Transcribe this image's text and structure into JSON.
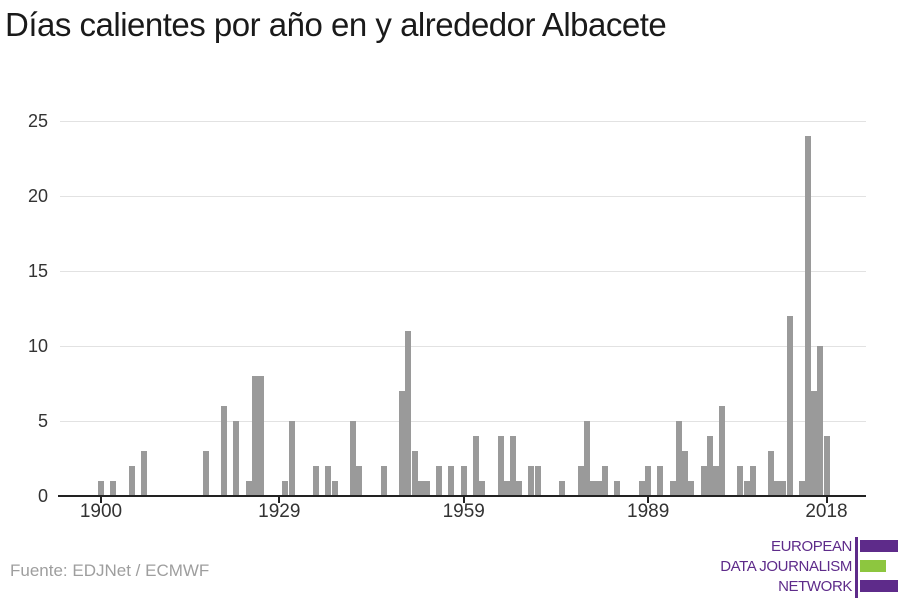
{
  "title": "Días calientes por año en y alrededor Albacete",
  "source": "Fuente: EDJNet / ECMWF",
  "logo": {
    "lines": [
      "EUROPEAN",
      "DATA JOURNALISM",
      "NETWORK"
    ],
    "purple": "#5e2b8a",
    "green": "#8dc63f"
  },
  "colors": {
    "bar": "#9a9a9a",
    "gridline": "#e2e2e2",
    "axis": "#222222",
    "tick_label": "#333333",
    "title_text": "#1a1a1a",
    "source_text": "#9e9e9e"
  },
  "chart_data": {
    "type": "bar",
    "title": "Días calientes por año en y alrededor Albacete",
    "xlabel": "",
    "ylabel": "",
    "ylim": [
      0,
      25
    ],
    "yticks": [
      0,
      5,
      10,
      15,
      20,
      25
    ],
    "xticks": [
      1900,
      1929,
      1959,
      1989,
      2018
    ],
    "grid": true,
    "legend": false,
    "years": [
      1900,
      1901,
      1902,
      1903,
      1904,
      1905,
      1906,
      1907,
      1908,
      1909,
      1910,
      1911,
      1912,
      1913,
      1914,
      1915,
      1916,
      1917,
      1918,
      1919,
      1920,
      1921,
      1922,
      1923,
      1924,
      1925,
      1926,
      1927,
      1928,
      1929,
      1930,
      1931,
      1932,
      1933,
      1934,
      1935,
      1936,
      1937,
      1938,
      1939,
      1940,
      1941,
      1942,
      1943,
      1944,
      1945,
      1946,
      1947,
      1948,
      1949,
      1950,
      1951,
      1952,
      1953,
      1954,
      1955,
      1956,
      1957,
      1958,
      1959,
      1960,
      1961,
      1962,
      1963,
      1964,
      1965,
      1966,
      1967,
      1968,
      1969,
      1970,
      1971,
      1972,
      1973,
      1974,
      1975,
      1976,
      1977,
      1978,
      1979,
      1980,
      1981,
      1982,
      1983,
      1984,
      1985,
      1986,
      1987,
      1988,
      1989,
      1990,
      1991,
      1992,
      1993,
      1994,
      1995,
      1996,
      1997,
      1998,
      1999,
      2000,
      2001,
      2002,
      2003,
      2004,
      2005,
      2006,
      2007,
      2008,
      2009,
      2010,
      2011,
      2012,
      2013,
      2014,
      2015,
      2016,
      2017,
      2018
    ],
    "values": [
      1,
      0,
      1,
      0,
      0,
      2,
      0,
      3,
      0,
      0,
      0,
      0,
      0,
      0,
      0,
      0,
      0,
      3,
      0,
      0,
      6,
      0,
      5,
      0,
      1,
      8,
      8,
      0,
      0,
      0,
      1,
      5,
      0,
      0,
      0,
      2,
      0,
      2,
      1,
      0,
      0,
      5,
      2,
      0,
      0,
      0,
      2,
      0,
      0,
      7,
      11,
      3,
      1,
      1,
      0,
      2,
      0,
      2,
      0,
      2,
      0,
      4,
      1,
      0,
      0,
      4,
      1,
      4,
      1,
      0,
      2,
      2,
      0,
      0,
      0,
      1,
      0,
      0,
      2,
      5,
      1,
      1,
      2,
      0,
      1,
      0,
      0,
      0,
      1,
      2,
      0,
      2,
      0,
      1,
      5,
      3,
      1,
      0,
      2,
      4,
      2,
      6,
      0,
      0,
      2,
      1,
      2,
      0,
      0,
      3,
      1,
      1,
      12,
      0,
      1,
      24,
      7,
      10,
      4
    ]
  }
}
